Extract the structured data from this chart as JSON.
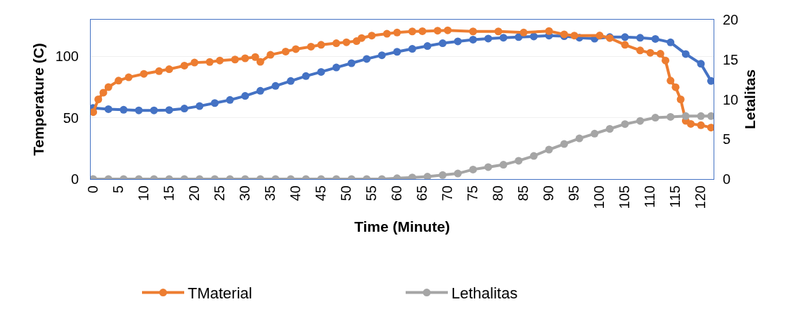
{
  "chart_data": {
    "type": "line",
    "xlabel": "Time (Minute)",
    "ylabel": "Temperature (C)",
    "y2label": "Letalitas",
    "x": [
      0,
      3,
      6,
      9,
      12,
      15,
      18,
      21,
      24,
      27,
      30,
      33,
      36,
      39,
      42,
      45,
      48,
      51,
      54,
      57,
      60,
      63,
      66,
      69,
      72,
      75,
      78,
      81,
      84,
      87,
      90,
      93,
      96,
      99,
      102,
      105,
      108,
      111,
      114,
      117,
      120,
      122
    ],
    "series": [
      {
        "color": "#4472c4",
        "values": [
          58,
          57,
          56.5,
          56,
          56,
          56.3,
          57.5,
          59.5,
          62,
          64.5,
          67.8,
          72,
          76,
          80,
          84,
          87.4,
          91,
          94.5,
          98,
          101,
          103.8,
          106.2,
          108.5,
          110.8,
          112.3,
          113.7,
          114.6,
          115.3,
          115.8,
          116.3,
          117,
          116.5,
          115.3,
          114.5,
          115.8,
          115.8,
          115.2,
          114.3,
          111.5,
          102,
          94,
          80
        ]
      },
      {
        "name": "TMaterial",
        "color": "#ed7d31",
        "x": [
          0,
          1,
          2,
          3,
          5,
          7,
          10,
          13,
          15,
          18,
          20,
          23,
          25,
          28,
          30,
          32,
          33,
          35,
          38,
          40,
          43,
          45,
          48,
          50,
          52,
          53,
          55,
          58,
          60,
          63,
          65,
          68,
          70,
          75,
          80,
          85,
          90,
          93,
          95,
          100,
          102,
          105,
          108,
          110,
          112,
          113,
          114,
          115,
          116,
          117,
          118,
          120,
          122
        ],
        "values": [
          54.6,
          65,
          70.5,
          75,
          80.3,
          83,
          85.8,
          88,
          89.6,
          92.5,
          95,
          95.5,
          96.7,
          97.5,
          98.5,
          99.5,
          95.6,
          101.3,
          104,
          106,
          108,
          109.5,
          110.8,
          111.6,
          112.5,
          115,
          117,
          118.5,
          119.5,
          120.4,
          120.6,
          121,
          121.3,
          120.4,
          120.4,
          119.5,
          120.7,
          118,
          117,
          117.1,
          115,
          109.5,
          104.9,
          103,
          102.2,
          96.7,
          80.3,
          74.9,
          65,
          47.5,
          45,
          43.9,
          42
        ]
      },
      {
        "name": "Lethalitas",
        "color": "#a5a5a5",
        "axis": "y2",
        "values": [
          0,
          0,
          0,
          0,
          0,
          0,
          0,
          0,
          0,
          0,
          0,
          0,
          0,
          0,
          0,
          0,
          0,
          0,
          0,
          0,
          0.1,
          0.2,
          0.3,
          0.5,
          0.7,
          1.2,
          1.5,
          1.8,
          2.3,
          2.9,
          3.7,
          4.4,
          5.1,
          5.7,
          6.3,
          6.9,
          7.3,
          7.7,
          7.8,
          7.9,
          7.9,
          7.9
        ]
      }
    ],
    "xlim": [
      -0.5,
      122.5
    ],
    "xticks": [
      0,
      5,
      10,
      15,
      20,
      25,
      30,
      35,
      40,
      45,
      50,
      55,
      60,
      65,
      70,
      75,
      80,
      85,
      90,
      95,
      100,
      105,
      110,
      115,
      120
    ],
    "ylim": [
      0,
      130
    ],
    "yticks": [
      0,
      50,
      100
    ],
    "y2lim": [
      0,
      20
    ],
    "y2ticks": [
      0,
      5,
      10,
      15,
      20
    ],
    "grid": "y",
    "legend": "bottom",
    "marker": "circle",
    "line_style": "solid"
  }
}
